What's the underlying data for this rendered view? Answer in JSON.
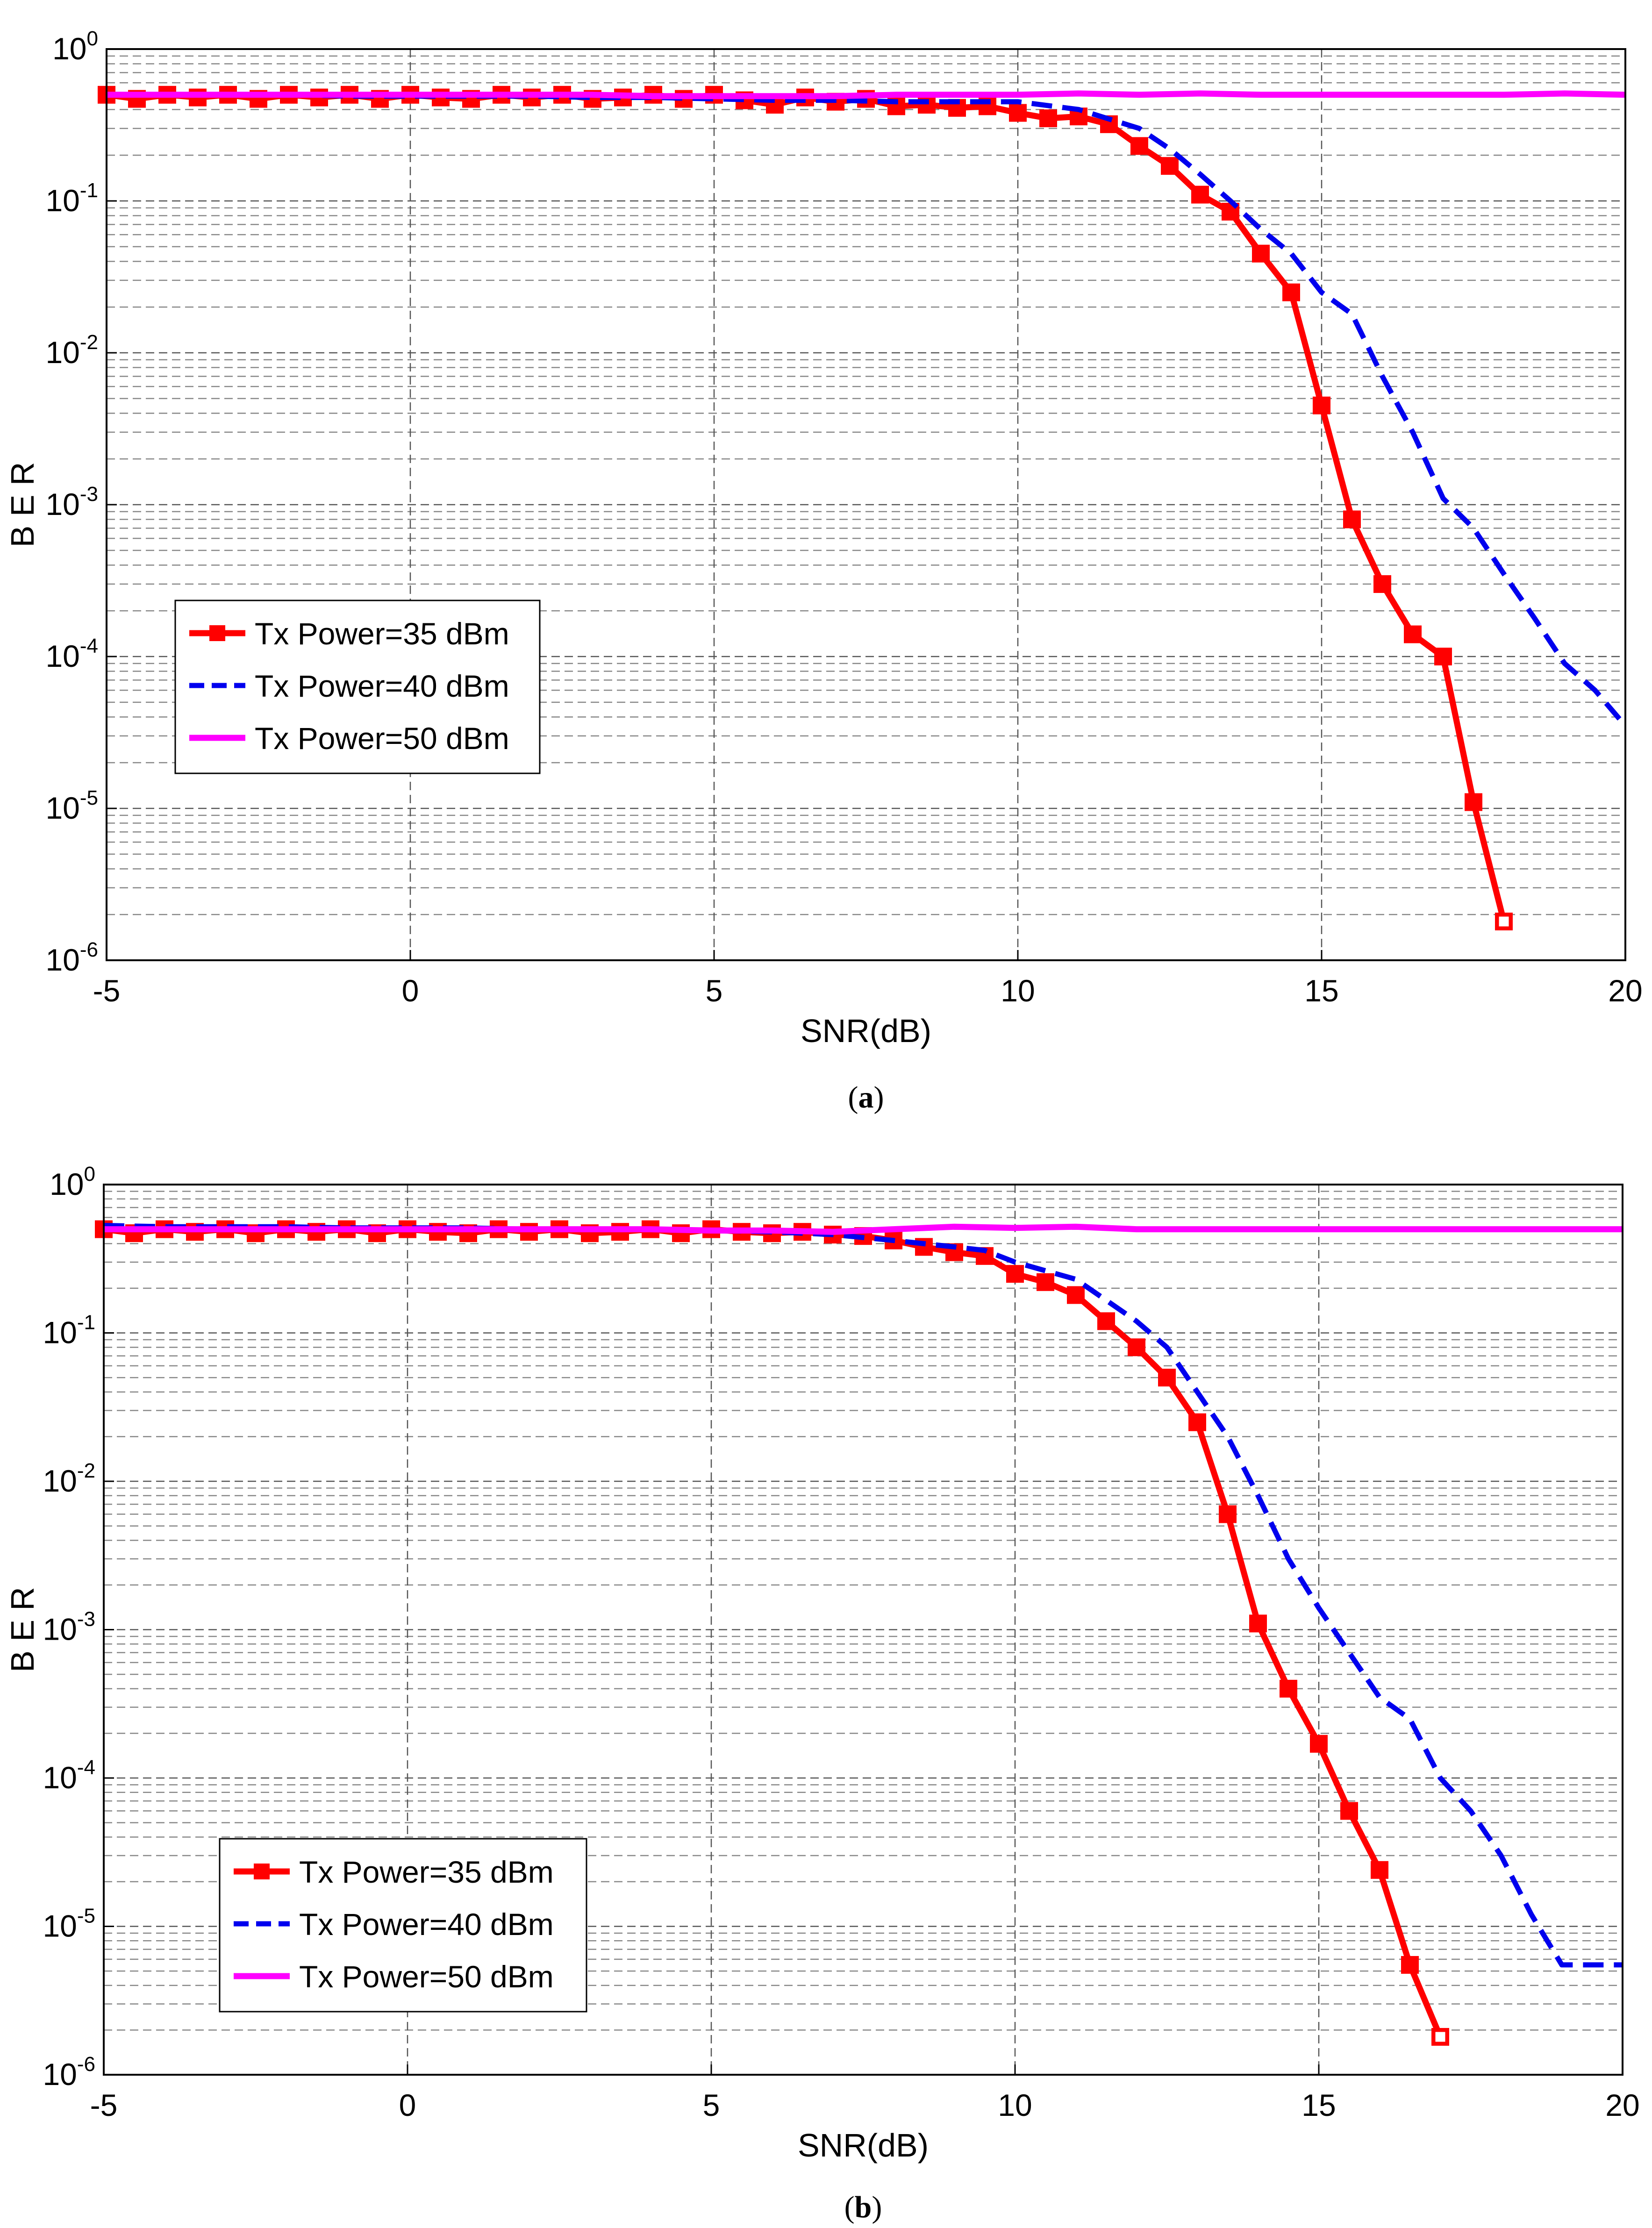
{
  "chart_data": [
    {
      "id": "a",
      "type": "line",
      "caption_label": "a",
      "xlabel": "SNR(dB)",
      "ylabel": "B E R",
      "xlim": [
        -5,
        20
      ],
      "ylim": [
        1e-06,
        1
      ],
      "yscale": "log",
      "grid": true,
      "legend_position": "lower-left",
      "xticks": [
        "-5",
        "0",
        "5",
        "10",
        "15",
        "20"
      ],
      "yticks": [
        {
          "base": "10",
          "exp": "0"
        },
        {
          "base": "10",
          "exp": "-1"
        },
        {
          "base": "10",
          "exp": "-2"
        },
        {
          "base": "10",
          "exp": "-3"
        },
        {
          "base": "10",
          "exp": "-4"
        },
        {
          "base": "10",
          "exp": "-5"
        },
        {
          "base": "10",
          "exp": "-6"
        }
      ],
      "series": [
        {
          "name": "Tx Power=35 dBm",
          "color": "#ff0000",
          "style": "solid-square",
          "x": [
            -5,
            -4.5,
            -4,
            -3.5,
            -3,
            -2.5,
            -2,
            -1.5,
            -1,
            -0.5,
            0,
            0.5,
            1,
            1.5,
            2,
            2.5,
            3,
            3.5,
            4,
            4.5,
            5,
            5.5,
            6,
            6.5,
            7,
            7.5,
            8,
            8.5,
            9,
            9.5,
            10,
            10.5,
            11,
            11.5,
            12,
            12.5,
            13,
            13.5,
            14,
            14.5,
            15,
            15.5,
            16,
            16.5,
            17,
            17.5,
            18
          ],
          "y": [
            0.5,
            0.47,
            0.5,
            0.48,
            0.5,
            0.47,
            0.5,
            0.48,
            0.5,
            0.47,
            0.5,
            0.48,
            0.47,
            0.5,
            0.48,
            0.5,
            0.47,
            0.48,
            0.5,
            0.47,
            0.5,
            0.46,
            0.43,
            0.48,
            0.45,
            0.47,
            0.42,
            0.43,
            0.41,
            0.42,
            0.38,
            0.35,
            0.36,
            0.32,
            0.23,
            0.17,
            0.11,
            0.085,
            0.045,
            0.025,
            0.0045,
            0.0008,
            0.0003,
            0.00014,
            0.0001,
            1.1e-05,
            1.8e-06
          ]
        },
        {
          "name": "Tx Power=40 dBm",
          "color": "#0000ee",
          "style": "dashed",
          "x": [
            -5,
            -4,
            -3,
            -2,
            -1,
            0,
            1,
            2,
            3,
            4,
            5,
            6,
            7,
            8,
            9,
            10,
            11,
            12,
            12.5,
            13,
            13.5,
            14,
            14.5,
            15,
            15.5,
            16,
            16.5,
            17,
            17.5,
            18,
            18.5,
            19,
            19.5,
            20
          ],
          "y": [
            0.5,
            0.5,
            0.5,
            0.5,
            0.49,
            0.49,
            0.49,
            0.49,
            0.48,
            0.48,
            0.47,
            0.46,
            0.46,
            0.45,
            0.45,
            0.45,
            0.4,
            0.3,
            0.22,
            0.15,
            0.1,
            0.065,
            0.045,
            0.025,
            0.018,
            0.007,
            0.003,
            0.0011,
            0.0007,
            0.00035,
            0.00018,
            9e-05,
            6e-05,
            3.5e-05
          ]
        },
        {
          "name": "Tx Power=50 dBm",
          "color": "#ff00ff",
          "style": "solid",
          "x": [
            -5,
            -4,
            -3,
            -2,
            -1,
            0,
            1,
            2,
            3,
            4,
            5,
            6,
            7,
            8,
            9,
            10,
            11,
            12,
            13,
            14,
            15,
            16,
            17,
            18,
            19,
            20
          ],
          "y": [
            0.5,
            0.5,
            0.5,
            0.5,
            0.5,
            0.5,
            0.5,
            0.5,
            0.5,
            0.49,
            0.49,
            0.49,
            0.49,
            0.5,
            0.5,
            0.5,
            0.51,
            0.5,
            0.51,
            0.5,
            0.5,
            0.5,
            0.5,
            0.5,
            0.51,
            0.5
          ]
        }
      ]
    },
    {
      "id": "b",
      "type": "line",
      "caption_label": "b",
      "xlabel": "SNR(dB)",
      "ylabel": "B E R",
      "xlim": [
        -5,
        20
      ],
      "ylim": [
        1e-06,
        1
      ],
      "yscale": "log",
      "grid": true,
      "legend_position": "lower-left",
      "xticks": [
        "-5",
        "0",
        "5",
        "10",
        "15",
        "20"
      ],
      "yticks": [
        {
          "base": "10",
          "exp": "0"
        },
        {
          "base": "10",
          "exp": "-1"
        },
        {
          "base": "10",
          "exp": "-2"
        },
        {
          "base": "10",
          "exp": "-3"
        },
        {
          "base": "10",
          "exp": "-4"
        },
        {
          "base": "10",
          "exp": "-5"
        },
        {
          "base": "10",
          "exp": "-6"
        }
      ],
      "series": [
        {
          "name": "Tx Power=35 dBm",
          "color": "#ff0000",
          "style": "solid-square",
          "x": [
            -5,
            -4.5,
            -4,
            -3.5,
            -3,
            -2.5,
            -2,
            -1.5,
            -1,
            -0.5,
            0,
            0.5,
            1,
            1.5,
            2,
            2.5,
            3,
            3.5,
            4,
            4.5,
            5,
            5.5,
            6,
            6.5,
            7,
            7.5,
            8,
            8.5,
            9,
            9.5,
            10,
            10.5,
            11,
            11.5,
            12,
            12.5,
            13,
            13.5,
            14,
            14.5,
            15,
            15.5,
            16,
            16.5,
            17
          ],
          "y": [
            0.5,
            0.47,
            0.5,
            0.48,
            0.5,
            0.47,
            0.5,
            0.48,
            0.5,
            0.47,
            0.5,
            0.48,
            0.47,
            0.5,
            0.48,
            0.5,
            0.47,
            0.48,
            0.5,
            0.47,
            0.5,
            0.48,
            0.47,
            0.48,
            0.46,
            0.45,
            0.42,
            0.38,
            0.35,
            0.33,
            0.25,
            0.22,
            0.18,
            0.12,
            0.08,
            0.05,
            0.025,
            0.006,
            0.0011,
            0.0004,
            0.00017,
            6e-05,
            2.4e-05,
            5.5e-06,
            1.8e-06
          ]
        },
        {
          "name": "Tx Power=40 dBm",
          "color": "#0000ee",
          "style": "dashed",
          "x": [
            -5,
            -4,
            -3,
            -2,
            -1,
            0,
            1,
            2,
            3,
            4,
            5,
            6,
            7,
            8,
            9,
            9.5,
            10,
            11,
            12,
            12.5,
            13,
            13.5,
            14,
            14.5,
            15,
            15.5,
            16,
            16.5,
            17,
            17.5,
            18,
            18.5,
            19,
            19.5,
            20
          ],
          "y": [
            0.53,
            0.52,
            0.52,
            0.52,
            0.51,
            0.51,
            0.51,
            0.5,
            0.5,
            0.5,
            0.49,
            0.48,
            0.46,
            0.42,
            0.38,
            0.36,
            0.3,
            0.23,
            0.12,
            0.08,
            0.04,
            0.02,
            0.008,
            0.003,
            0.0014,
            0.0007,
            0.00035,
            0.00025,
            0.0001,
            6e-05,
            3e-05,
            1.2e-05,
            5.5e-06,
            5.5e-06,
            5.5e-06
          ]
        },
        {
          "name": "Tx Power=50 dBm",
          "color": "#ff00ff",
          "style": "solid",
          "x": [
            -5,
            -4,
            -3,
            -2,
            -1,
            0,
            1,
            2,
            3,
            4,
            5,
            6,
            7,
            8,
            9,
            10,
            11,
            12,
            13,
            14,
            15,
            16,
            17,
            18,
            19,
            20
          ],
          "y": [
            0.5,
            0.5,
            0.5,
            0.5,
            0.5,
            0.5,
            0.5,
            0.5,
            0.5,
            0.5,
            0.49,
            0.49,
            0.48,
            0.5,
            0.52,
            0.51,
            0.52,
            0.5,
            0.5,
            0.5,
            0.5,
            0.5,
            0.5,
            0.5,
            0.5,
            0.5
          ]
        }
      ]
    }
  ]
}
